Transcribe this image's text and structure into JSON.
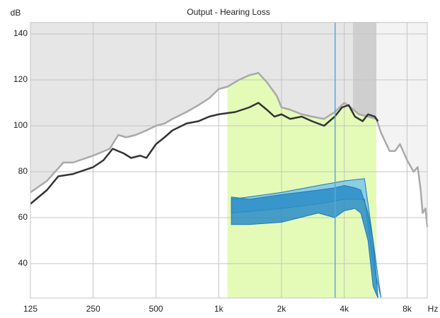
{
  "chart_data": {
    "type": "line",
    "title": "Output - Hearing Loss",
    "y_label": "dB",
    "x_label": "Hz",
    "log_x": true,
    "grid": true,
    "xlim": [
      125,
      10000
    ],
    "ylim": [
      25,
      145
    ],
    "xticks": [
      125,
      250,
      500,
      {
        "value": 1000,
        "label": "1k"
      },
      {
        "value": 2000,
        "label": "2k"
      },
      {
        "value": 4000,
        "label": "4k"
      },
      {
        "value": 8000,
        "label": "8k"
      }
    ],
    "yticks": [
      40,
      60,
      80,
      100,
      120,
      140
    ],
    "shade_color": "#e6e6e6",
    "shade_right_color": "#f3f3f3",
    "band": [
      1100,
      5700
    ],
    "band_color": "#e4fbb8",
    "dark_band": [
      4400,
      5700
    ],
    "dark_band_color": "#cfcfcf",
    "marker_x": 3614,
    "marker_color": "#5aa6dc",
    "curves": [
      {
        "color": "#a9a9a9",
        "x": [
          125,
          150,
          180,
          200,
          250,
          300,
          330,
          360,
          400,
          450,
          500,
          550,
          600,
          700,
          800,
          900,
          1000,
          1100,
          1250,
          1400,
          1550,
          1700,
          1900,
          2000,
          2200,
          2500,
          2800,
          3200,
          3600,
          4000,
          4300,
          4700,
          5200,
          5700,
          6000,
          6600,
          7000,
          7400,
          8000,
          8600,
          9000,
          9300,
          9500,
          9800,
          10000
        ],
        "y": [
          71,
          76,
          84,
          84,
          87,
          90,
          96,
          95,
          96,
          98,
          100,
          101,
          103,
          106,
          109,
          112,
          116,
          117,
          120,
          122,
          123,
          119,
          113,
          108,
          107,
          105,
          104,
          103,
          106,
          110,
          108,
          105,
          104,
          103,
          97,
          89,
          89,
          92,
          85,
          80,
          82,
          72,
          62,
          64,
          56
        ]
      },
      {
        "color": "#333333",
        "x": [
          125,
          150,
          170,
          200,
          250,
          280,
          310,
          350,
          380,
          420,
          450,
          500,
          550,
          600,
          700,
          800,
          900,
          1000,
          1200,
          1400,
          1550,
          1700,
          1850,
          2000,
          2200,
          2500,
          2800,
          3200,
          3600,
          3900,
          4200,
          4500,
          4900,
          5200,
          5600,
          5800
        ],
        "y": [
          66,
          72,
          78,
          79,
          82,
          85,
          90,
          88,
          86,
          87,
          86,
          92,
          95,
          98,
          101,
          102,
          104,
          105,
          106,
          108,
          110,
          107,
          104,
          105,
          103,
          104,
          102,
          100,
          104,
          108,
          109,
          104,
          102,
          105,
          104,
          102
        ]
      }
    ],
    "bands": [
      {
        "color": "#7cc6ea",
        "x": [
          1150,
          2000,
          3000,
          4000,
          5000,
          5500,
          6000
        ],
        "upper": [
          68,
          71,
          74,
          76,
          77,
          50,
          25
        ],
        "lower": [
          62,
          64,
          66,
          68,
          68,
          40,
          25
        ]
      },
      {
        "color": "#2a8cc8",
        "x": [
          1150,
          1400,
          2000,
          3000,
          3600,
          4000,
          4500,
          4800,
          5200,
          5500,
          5800
        ],
        "upper": [
          69,
          68,
          70,
          72,
          73,
          74,
          73,
          72,
          62,
          50,
          26
        ],
        "lower": [
          57,
          57,
          58,
          62,
          60,
          63,
          64,
          62,
          50,
          30,
          25
        ]
      }
    ]
  }
}
